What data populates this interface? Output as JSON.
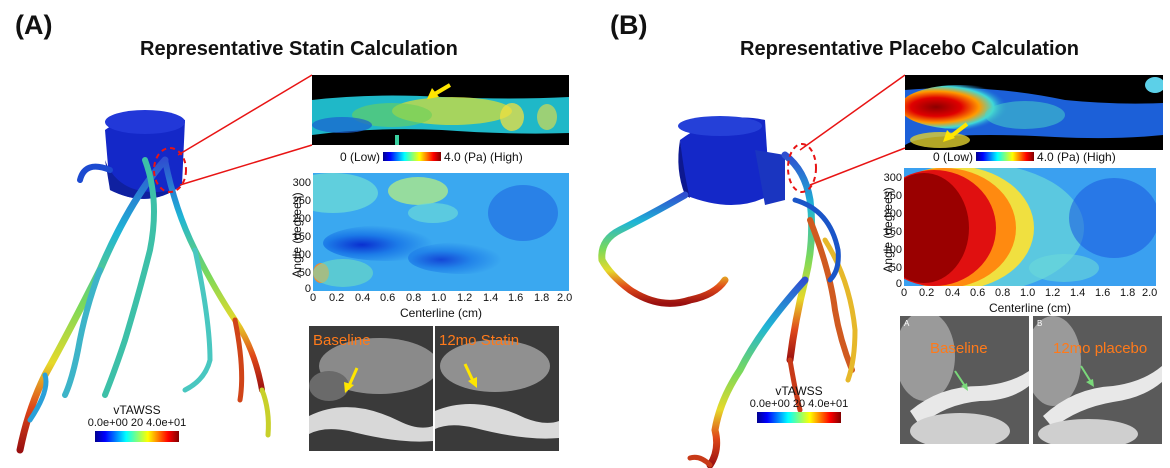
{
  "panels": [
    {
      "label": "(A)",
      "title": "Representative Statin Calculation",
      "colorbar_top": {
        "low_label": "0 (Low)",
        "high_label": "4.0 (Pa) (High)"
      },
      "colorbar_bottom": {
        "title": "vTAWSS",
        "ticks": "0.0e+00 20 4.0e+01"
      },
      "heatmap": {
        "ylabel": "Angle (degrees)",
        "xlabel": "Centerline (cm)",
        "yticks": [
          "300",
          "250",
          "200",
          "150",
          "100",
          "50",
          "0"
        ],
        "xticks": [
          "0",
          "0.2",
          "0.4",
          "0.6",
          "0.8",
          "1.0",
          "1.2",
          "1.4",
          "1.6",
          "1.8",
          "2.0"
        ]
      },
      "ct": {
        "left_label": "Baseline",
        "right_label": "12mo Statin"
      }
    },
    {
      "label": "(B)",
      "title": "Representative Placebo Calculation",
      "colorbar_top": {
        "low_label": "0 (Low)",
        "high_label": "4.0 (Pa) (High)"
      },
      "colorbar_bottom": {
        "title": "vTAWSS",
        "ticks": "0.0e+00 20 4.0e+01"
      },
      "heatmap": {
        "ylabel": "Angle (degrees)",
        "xlabel": "Centerline (cm)",
        "yticks": [
          "300",
          "250",
          "200",
          "150",
          "100",
          "50",
          "0"
        ],
        "xticks": [
          "0",
          "0.2",
          "0.4",
          "0.6",
          "0.8",
          "1.0",
          "1.2",
          "1.4",
          "1.6",
          "1.8",
          "2.0"
        ]
      },
      "ct": {
        "left_label": "Baseline",
        "right_label": "12mo placebo",
        "left_corner": "A",
        "right_corner": "B"
      }
    }
  ],
  "colors": {
    "highlight": "#e81414",
    "arrow": "#ffe600",
    "ct_label": "#ff7a1a"
  }
}
